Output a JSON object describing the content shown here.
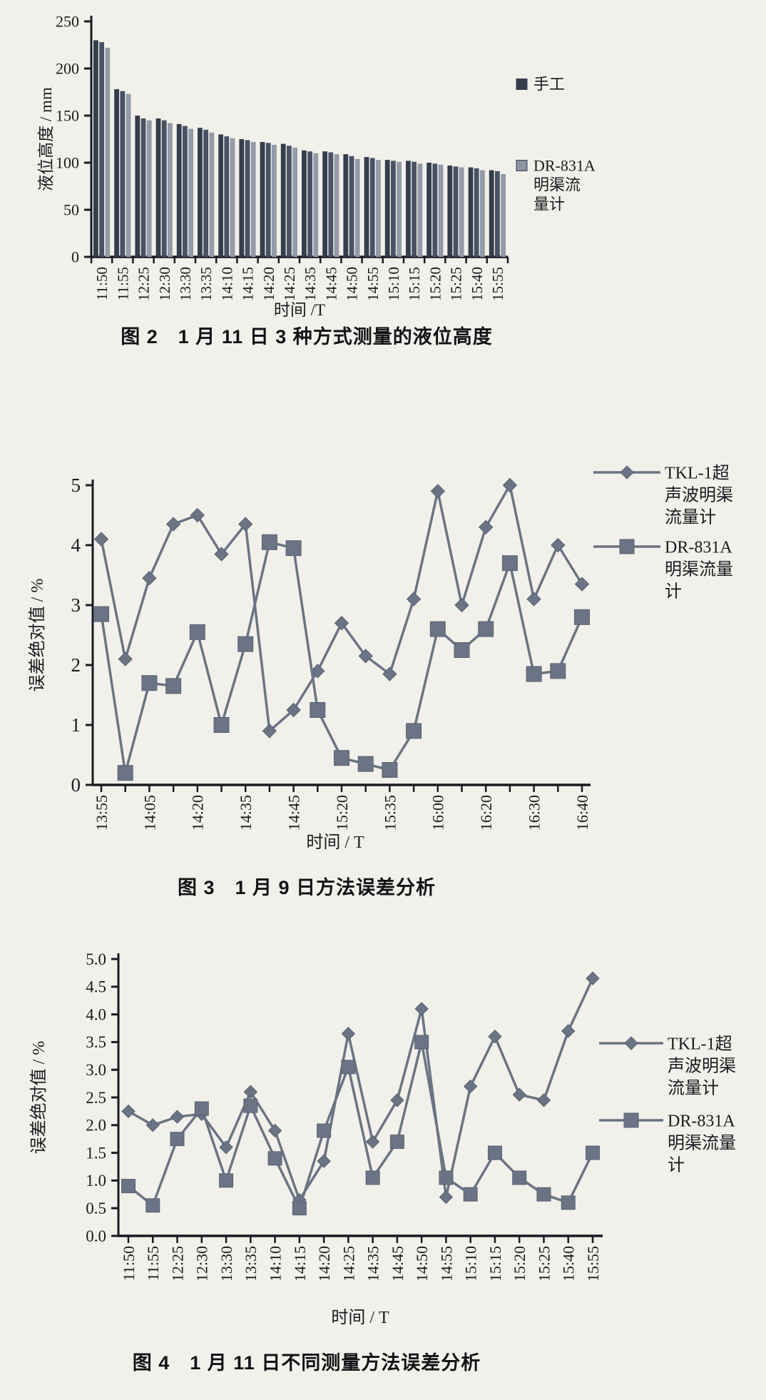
{
  "page": {
    "background": "#f2f0ea",
    "ink_color": "#1a1b20",
    "line_color": "#6b7484",
    "bar_colors": [
      "#343d4c",
      "#485264",
      "#949aa7"
    ]
  },
  "chart_data": [
    {
      "id": "fig2",
      "type": "bar",
      "caption": "图 2　1 月 11 日 3 种方式测量的液位高度",
      "xlabel": "时间 /T",
      "ylabel": "液位高度 / mm",
      "ylim": [
        0,
        250
      ],
      "yticks": [
        0,
        50,
        100,
        150,
        200,
        250
      ],
      "grid": false,
      "legend_position": "right",
      "categories": [
        "11:50",
        "11:55",
        "12:25",
        "12:30",
        "13:30",
        "13:35",
        "14:10",
        "14:15",
        "14:20",
        "14:25",
        "14:35",
        "14:45",
        "14:50",
        "14:55",
        "15:10",
        "15:15",
        "15:20",
        "15:25",
        "15:40",
        "15:55"
      ],
      "series": [
        {
          "name": "手工",
          "color": "#343d4c",
          "values": [
            230,
            178,
            150,
            147,
            141,
            137,
            130,
            125,
            122,
            120,
            113,
            112,
            109,
            106,
            103,
            102,
            100,
            97,
            95,
            92
          ]
        },
        {
          "name": "",
          "color": "#485264",
          "values": [
            228,
            176,
            147,
            145,
            139,
            135,
            128,
            124,
            121,
            118,
            112,
            111,
            107,
            105,
            102,
            101,
            99,
            96,
            94,
            91
          ]
        },
        {
          "name": "DR-831A明渠流量计",
          "color": "#949aa7",
          "values": [
            222,
            173,
            145,
            142,
            136,
            132,
            126,
            122,
            119,
            116,
            110,
            109,
            104,
            103,
            101,
            99,
            98,
            95,
            92,
            88
          ]
        }
      ],
      "legend": [
        {
          "label": "手工",
          "marker": "square",
          "color": "#343d4c"
        },
        {
          "label": "DR-831A明渠流量计",
          "marker": "square",
          "color": "#8b92a0"
        }
      ]
    },
    {
      "id": "fig3",
      "type": "line",
      "caption": "图 3　1 月 9 日方法误差分析",
      "xlabel": "时间 / T",
      "ylabel": "误差绝对值 / %",
      "ylim": [
        0,
        5
      ],
      "yticks": [
        0,
        1,
        2,
        3,
        4,
        5
      ],
      "grid": false,
      "legend_position": "right",
      "categories": [
        "13:55",
        "",
        "14:05",
        "",
        "14:20",
        "",
        "14:35",
        "",
        "14:45",
        "",
        "15:20",
        "",
        "15:35",
        "",
        "16:00",
        "",
        "16:20",
        "",
        "16:30",
        "",
        "16:40"
      ],
      "series": [
        {
          "name": "TKL-1超声波明渠流量计",
          "marker": "diamond",
          "values": [
            4.1,
            2.1,
            3.45,
            4.35,
            4.5,
            3.85,
            4.35,
            0.9,
            1.25,
            1.9,
            2.7,
            2.15,
            1.85,
            3.1,
            4.9,
            3.0,
            4.3,
            5.0,
            3.1,
            4.0,
            3.35
          ]
        },
        {
          "name": "DR-831A明渠流量计",
          "marker": "square",
          "values": [
            2.85,
            0.2,
            1.7,
            1.65,
            2.55,
            1.0,
            2.35,
            4.05,
            3.95,
            1.25,
            0.45,
            0.35,
            0.25,
            0.9,
            2.6,
            2.25,
            2.6,
            3.7,
            1.85,
            1.9,
            2.8
          ]
        }
      ],
      "legend": [
        {
          "label": "TKL-1超声波明渠流量计",
          "marker": "diamond",
          "color": "#6b7484"
        },
        {
          "label": "DR-831A明渠流量计",
          "marker": "square",
          "color": "#6b7484"
        }
      ]
    },
    {
      "id": "fig4",
      "type": "line",
      "caption": "图 4　1 月 11 日不同测量方法误差分析",
      "xlabel": "时间 / T",
      "ylabel": "误差绝对值 / %",
      "ylim": [
        0,
        5
      ],
      "ytick_decimals": 1,
      "yticks": [
        0.0,
        0.5,
        1.0,
        1.5,
        2.0,
        2.5,
        3.0,
        3.5,
        4.0,
        4.5,
        5.0
      ],
      "grid": false,
      "legend_position": "right",
      "categories": [
        "11:50",
        "11:55",
        "12:25",
        "12:30",
        "13:30",
        "13:35",
        "14:10",
        "14:15",
        "14:20",
        "14:25",
        "14:35",
        "14:45",
        "14:50",
        "14:55",
        "15:10",
        "15:15",
        "15:20",
        "15:25",
        "15:40",
        "15:55"
      ],
      "series": [
        {
          "name": "TKL-1超声波明渠流量计",
          "marker": "diamond",
          "values": [
            2.25,
            2.0,
            2.15,
            2.2,
            1.6,
            2.6,
            1.9,
            0.65,
            1.35,
            3.65,
            1.7,
            2.45,
            4.1,
            0.7,
            2.7,
            3.6,
            2.55,
            2.45,
            3.7,
            4.65
          ]
        },
        {
          "name": "DR-831A明渠流量计",
          "marker": "square",
          "values": [
            0.9,
            0.55,
            1.75,
            2.3,
            1.0,
            2.35,
            1.4,
            0.5,
            1.9,
            3.05,
            1.05,
            1.7,
            3.5,
            1.05,
            0.75,
            1.5,
            1.05,
            0.75,
            0.6,
            1.5
          ]
        }
      ],
      "legend": [
        {
          "label": "TKL-1超声波明渠流量计",
          "marker": "diamond",
          "color": "#6b7484"
        },
        {
          "label": "DR-831A明渠流量计",
          "marker": "square",
          "color": "#6b7484"
        }
      ]
    }
  ]
}
